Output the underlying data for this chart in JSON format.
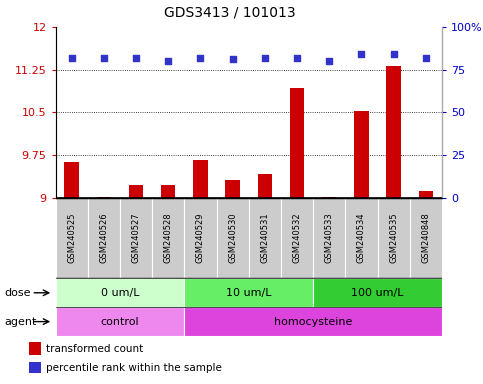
{
  "title": "GDS3413 / 101013",
  "samples": [
    "GSM240525",
    "GSM240526",
    "GSM240527",
    "GSM240528",
    "GSM240529",
    "GSM240530",
    "GSM240531",
    "GSM240532",
    "GSM240533",
    "GSM240534",
    "GSM240535",
    "GSM240848"
  ],
  "transformed_count": [
    9.62,
    9.02,
    9.22,
    9.22,
    9.67,
    9.32,
    9.42,
    10.92,
    9.02,
    10.52,
    11.32,
    9.12
  ],
  "percentile_rank": [
    82,
    82,
    82,
    80,
    82,
    81,
    82,
    82,
    80,
    84,
    84,
    82
  ],
  "ylim_left": [
    9,
    12
  ],
  "ylim_right": [
    0,
    100
  ],
  "yticks_left": [
    9,
    9.75,
    10.5,
    11.25,
    12
  ],
  "yticks_right": [
    0,
    25,
    50,
    75,
    100
  ],
  "ytick_labels_left": [
    "9",
    "9.75",
    "10.5",
    "11.25",
    "12"
  ],
  "ytick_labels_right": [
    "0",
    "25",
    "50",
    "75",
    "100%"
  ],
  "bar_color": "#cc0000",
  "dot_color": "#3333cc",
  "dose_groups": [
    {
      "label": "0 um/L",
      "start": 0,
      "end": 4,
      "color": "#ccffcc"
    },
    {
      "label": "10 um/L",
      "start": 4,
      "end": 8,
      "color": "#66ee66"
    },
    {
      "label": "100 um/L",
      "start": 8,
      "end": 12,
      "color": "#33cc33"
    }
  ],
  "agent_groups": [
    {
      "label": "control",
      "start": 0,
      "end": 4,
      "color": "#ee88ee"
    },
    {
      "label": "homocysteine",
      "start": 4,
      "end": 12,
      "color": "#dd44dd"
    }
  ],
  "dose_label": "dose",
  "agent_label": "agent",
  "legend_bar_label": "transformed count",
  "legend_dot_label": "percentile rank within the sample",
  "bar_bottom": 9,
  "sample_band_color": "#cccccc",
  "grid_color": "#000000",
  "tick_color_left": "#cc0000",
  "tick_color_right": "#0000cc"
}
